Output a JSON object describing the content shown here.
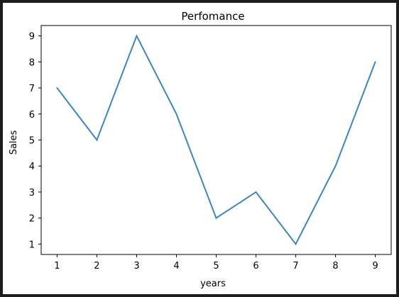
{
  "chart_data": {
    "type": "line",
    "title": "Perfomance",
    "xlabel": "years",
    "ylabel": "Sales",
    "x": [
      1,
      2,
      3,
      4,
      5,
      6,
      7,
      8,
      9
    ],
    "series": [
      {
        "values": [
          7,
          5,
          9,
          6,
          2,
          3,
          1,
          4,
          8
        ]
      }
    ],
    "xticks": [
      1,
      2,
      3,
      4,
      5,
      6,
      7,
      8,
      9
    ],
    "yticks": [
      1,
      2,
      3,
      4,
      5,
      6,
      7,
      8,
      9
    ],
    "xlim": [
      0.6,
      9.4
    ],
    "ylim": [
      0.6,
      9.4
    ],
    "grid": false,
    "line_color": "#3a86c4"
  }
}
